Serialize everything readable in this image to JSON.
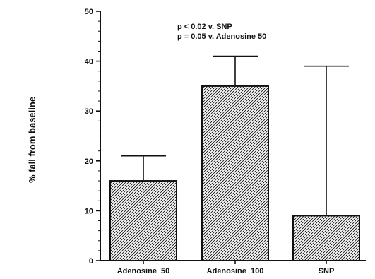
{
  "chart_data": {
    "type": "bar",
    "categories": [
      "Adenosine  50",
      "Adenosine  100",
      "SNP"
    ],
    "values": [
      16,
      35,
      9
    ],
    "error_upper": [
      21,
      41,
      39
    ],
    "title": "",
    "xlabel": "",
    "ylabel": "% fall from baseline",
    "ylim": [
      0,
      50
    ],
    "yticks": [
      0,
      10,
      20,
      30,
      40,
      50
    ],
    "annotations": [
      "p < 0.02  v.  SNP",
      "p = 0.05  v.  Adenosine  50"
    ],
    "bar_fill": "diagonal-hatch",
    "colors": {
      "ink": "#111111",
      "background": "#ffffff"
    }
  }
}
